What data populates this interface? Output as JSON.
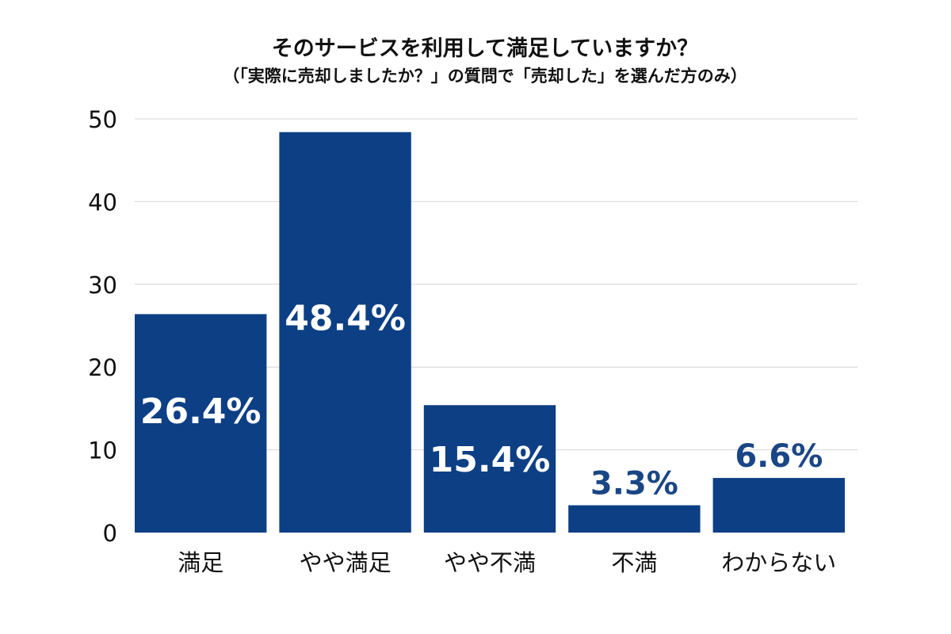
{
  "chart_data": {
    "type": "bar",
    "title": "そのサービスを利用して満足していますか？",
    "subtitle": "（「実際に売却しましたか？」の質問で「売却した」を選んだ方のみ）",
    "categories": [
      "満足",
      "やや満足",
      "やや不満",
      "不満",
      "わからない"
    ],
    "values": [
      26.4,
      48.4,
      15.4,
      3.3,
      6.6
    ],
    "data_labels": [
      "26.4%",
      "48.4%",
      "15.4%",
      "3.3%",
      "6.6%"
    ],
    "ylim": [
      0,
      50
    ],
    "yticks": [
      0,
      10,
      20,
      30,
      40,
      50
    ],
    "grid": true,
    "bar_color": "#0d3f85",
    "label_inside_color": "#ffffff",
    "label_outside_color": "#1a4686"
  }
}
